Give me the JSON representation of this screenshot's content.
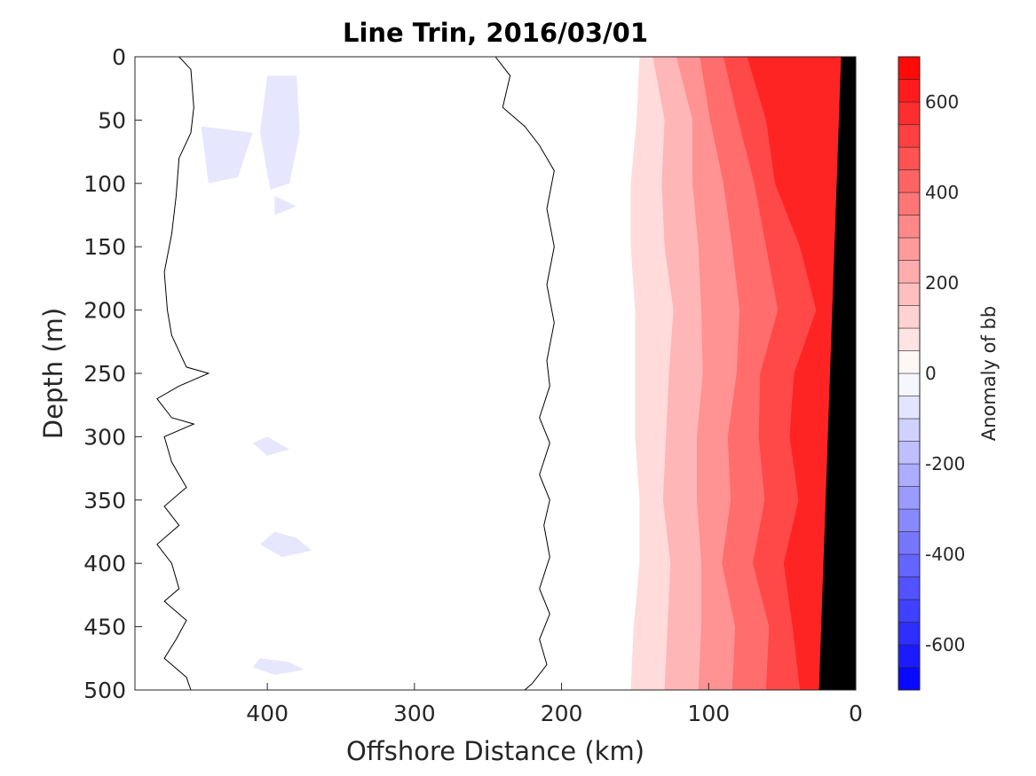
{
  "chart_data": {
    "type": "heatmap",
    "title": "Line Trin, 2016/03/01",
    "xlabel": "Offshore Distance (km)",
    "ylabel": "Depth (m)",
    "xlim": [
      490,
      0
    ],
    "ylim": [
      0,
      500
    ],
    "x_reversed": true,
    "y_reversed": true,
    "xticks": [
      400,
      300,
      200,
      100,
      0
    ],
    "yticks": [
      0,
      50,
      100,
      150,
      200,
      250,
      300,
      350,
      400,
      450,
      500
    ],
    "colorbar": {
      "label": "Anomaly of bb",
      "range": [
        -700,
        700
      ],
      "ticks": [
        -600,
        -400,
        -200,
        0,
        200,
        400,
        600
      ],
      "step": 100,
      "negative_color": "#0000ff",
      "zero_color": "#ffffff",
      "positive_color": "#ff0000"
    },
    "colors": {
      "contour_line": "#000000",
      "bathymetry": "#000000",
      "weak_negative": "#e6e6ff"
    },
    "bathymetry": [
      [
        10,
        0
      ],
      [
        25,
        500
      ]
    ],
    "anomaly_bands": {
      "note_levels": [
        100,
        200,
        300,
        400,
        500,
        600
      ],
      "depths": [
        0,
        50,
        100,
        150,
        200,
        250,
        300,
        350,
        400,
        450,
        500
      ],
      "outer_edge_km": [
        150,
        150,
        152,
        150,
        152,
        150,
        148,
        150,
        148,
        150,
        150
      ],
      "band_width_km": [
        15,
        18,
        20,
        22,
        25,
        22,
        20,
        22,
        20,
        22,
        22
      ]
    }
  }
}
